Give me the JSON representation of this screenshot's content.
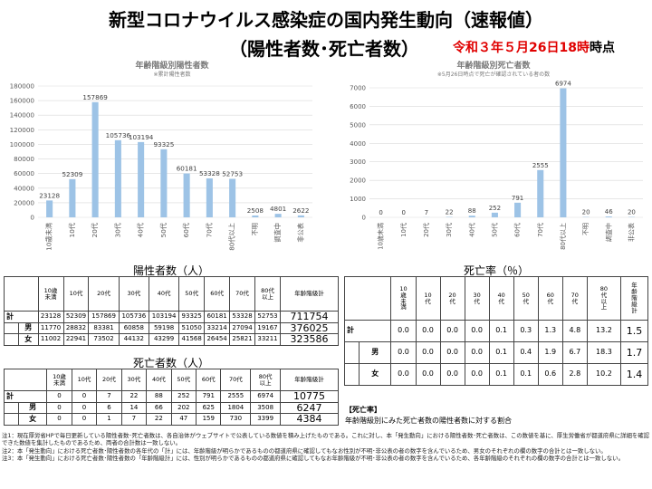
{
  "title_line1": "新型コロナウイルス感染症の国内発生動向（速報値）",
  "title_line2": "（陽性者数･死亡者数）",
  "date_prefix": "令和３年５月",
  "date_red": "26日18時",
  "date_suffix": "時点",
  "chart_data": [
    {
      "type": "bar",
      "title": "年齢階級別陽性者数",
      "subtitle": "※累計陽性者数",
      "categories": [
        "10歳未満",
        "10代",
        "20代",
        "30代",
        "40代",
        "50代",
        "60代",
        "70代",
        "80代以上",
        "不明",
        "調査中",
        "非公表"
      ],
      "values": [
        23128,
        52309,
        157869,
        105736,
        103194,
        93325,
        60181,
        53328,
        52753,
        2508,
        4801,
        2622
      ],
      "ylim": [
        0,
        180000
      ],
      "yticks": [
        0,
        20000,
        40000,
        60000,
        80000,
        100000,
        120000,
        140000,
        160000,
        180000
      ],
      "color": "#9dc3e6"
    },
    {
      "type": "bar",
      "title": "年齢階級別死亡者数",
      "subtitle": "※5月26日時点で死亡が確認されている者の数",
      "categories": [
        "10歳未満",
        "10代",
        "20代",
        "30代",
        "40代",
        "50代",
        "60代",
        "70代",
        "80代以上",
        "不明",
        "調査中",
        "非公表"
      ],
      "values": [
        0,
        0,
        7,
        22,
        88,
        252,
        791,
        2555,
        6974,
        20,
        46,
        20
      ],
      "ylim": [
        0,
        7000
      ],
      "yticks": [
        0,
        1000,
        2000,
        3000,
        4000,
        5000,
        6000,
        7000
      ],
      "color": "#9dc3e6"
    }
  ],
  "pos_table": {
    "title": "陽性者数（人）",
    "headers": [
      "10歳\n未満",
      "10代",
      "20代",
      "30代",
      "40代",
      "50代",
      "60代",
      "70代",
      "80代\n以上",
      "年齢階級計"
    ],
    "rows": [
      {
        "label": "計",
        "values": [
          "23128",
          "52309",
          "157869",
          "105736",
          "103194",
          "93325",
          "60181",
          "53328",
          "52753"
        ],
        "total": "711754"
      },
      {
        "label": "男",
        "values": [
          "11770",
          "28832",
          "83381",
          "60858",
          "59198",
          "51050",
          "33214",
          "27094",
          "19167"
        ],
        "total": "376025"
      },
      {
        "label": "女",
        "values": [
          "11002",
          "22941",
          "73502",
          "44132",
          "43299",
          "41568",
          "26454",
          "25821",
          "33211"
        ],
        "total": "323586"
      }
    ]
  },
  "death_table": {
    "title": "死亡者数（人）",
    "headers": [
      "10歳\n未満",
      "10代",
      "20代",
      "30代",
      "40代",
      "50代",
      "60代",
      "70代",
      "80代\n以上",
      "年齢階級計"
    ],
    "rows": [
      {
        "label": "計",
        "values": [
          "0",
          "0",
          "7",
          "22",
          "88",
          "252",
          "791",
          "2555",
          "6974"
        ],
        "total": "10775"
      },
      {
        "label": "男",
        "values": [
          "0",
          "0",
          "6",
          "14",
          "66",
          "202",
          "625",
          "1804",
          "3508"
        ],
        "total": "6247"
      },
      {
        "label": "女",
        "values": [
          "0",
          "0",
          "1",
          "7",
          "22",
          "47",
          "159",
          "730",
          "3399"
        ],
        "total": "4384"
      }
    ]
  },
  "rate_table": {
    "title": "死亡率（％）",
    "headers": [
      "10\n歳\n未\n満",
      "10\n代",
      "20\n代",
      "30\n代",
      "40\n代",
      "50\n代",
      "60\n代",
      "70\n代",
      "80\n代\n以\n上",
      "年\n齢\n階\n級\n計"
    ],
    "rows": [
      {
        "label": "計",
        "values": [
          "0.0",
          "0.0",
          "0.0",
          "0.0",
          "0.1",
          "0.3",
          "1.3",
          "4.8",
          "13.2"
        ],
        "total": "1.5"
      },
      {
        "label": "男",
        "values": [
          "0.0",
          "0.0",
          "0.0",
          "0.0",
          "0.1",
          "0.4",
          "1.9",
          "6.7",
          "18.3"
        ],
        "total": "1.7"
      },
      {
        "label": "女",
        "values": [
          "0.0",
          "0.0",
          "0.0",
          "0.0",
          "0.1",
          "0.1",
          "0.6",
          "2.8",
          "10.2"
        ],
        "total": "1.4"
      }
    ]
  },
  "rate_note_title": "【死亡率】",
  "rate_note_text": "年齢階級別にみた死亡者数の陽性者数に対する割合",
  "notes": [
    "注1：現在厚労省HPで毎日更新している陽性者数･死亡者数は、各自治体がウェブサイトで公表している数値を積み上げたものである。これに対し、本「発生動向」における陽性者数･死亡者数は、この数値を基に、厚生労働省が都道府県に詳細を確認できた数値を集計したものであるため、両者の合計数は一致しない。",
    "注2：本「発生動向」における死亡者数･陽性者数の各年代の「計」には、年齢階級が明らかであるものの都道府県に確認してもなお性別が不明･非公表の者の数字を含んでいるため、男女のそれぞれの欄の数字の合計とは一致しない。",
    "注3：本「発生動向」における死亡者数･陽性者数の「年齢階級計」には、性別が明らかであるものの都道府県に確認してもなお年齢階級が不明･非公表の者の数字を含んでいるため、各年齢階級のそれぞれの欄の数字の合計とは一致しない。"
  ]
}
